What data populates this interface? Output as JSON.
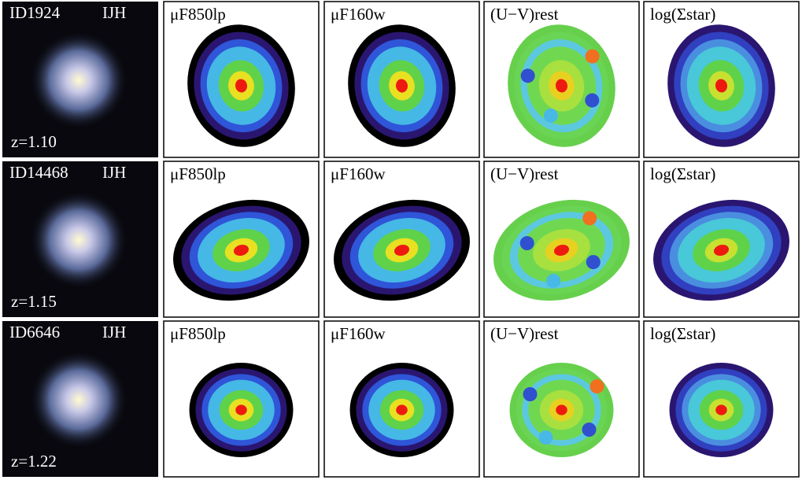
{
  "rows": [
    {
      "id": "ID1924",
      "bands": "IJH",
      "z": "z=1.10",
      "panels": [
        "μF850lp",
        "μF160w",
        "(U−V)rest",
        "log(Σstar)"
      ]
    },
    {
      "id": "ID14468",
      "bands": "IJH",
      "z": "z=1.15",
      "panels": [
        "μF850lp",
        "μF160w",
        "(U−V)rest",
        "log(Σstar)"
      ]
    },
    {
      "id": "ID6646",
      "bands": "IJH",
      "z": "z=1.22",
      "panels": [
        "μF850lp",
        "μF160w",
        "(U−V)rest",
        "log(Σstar)"
      ]
    }
  ]
}
